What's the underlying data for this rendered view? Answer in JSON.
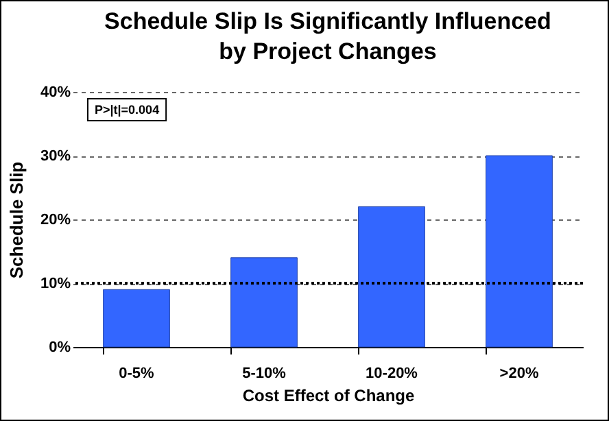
{
  "chart_data": {
    "type": "bar",
    "title": "Schedule Slip Is Significantly Influenced\nby Project Changes",
    "xlabel": "Cost Effect of Change",
    "ylabel": "Schedule Slip",
    "categories": [
      "0-5%",
      "5-10%",
      "10-20%",
      ">20%"
    ],
    "values": [
      9,
      14,
      22,
      30
    ],
    "color": "#3366ff",
    "ylim": [
      0,
      40
    ],
    "yticks": [
      {
        "value": 0,
        "label": "0%"
      },
      {
        "value": 10,
        "label": "10%"
      },
      {
        "value": 20,
        "label": "20%"
      },
      {
        "value": 30,
        "label": "30%"
      },
      {
        "value": 40,
        "label": "40%"
      }
    ],
    "grid": "y",
    "ref_lines": [
      {
        "axis": "y",
        "value": 10,
        "line_style": "dotted",
        "color": "#000000"
      }
    ],
    "annotations": [
      "P>|t|=0.004"
    ]
  }
}
